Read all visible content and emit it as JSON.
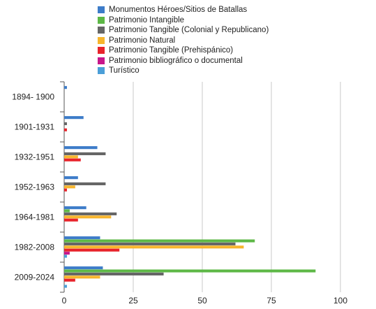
{
  "chart_data": {
    "type": "bar",
    "orientation": "horizontal",
    "title": "",
    "xlabel": "",
    "ylabel": "",
    "xlim": [
      0,
      100
    ],
    "x_ticks": [
      0,
      25,
      50,
      75,
      100
    ],
    "grid": true,
    "legend_position": "top",
    "categories": [
      "1894- 1900",
      "1901-1931",
      "1932-1951",
      "1952-1963",
      "1964-1981",
      "1982-2008",
      "2009-2024"
    ],
    "series": [
      {
        "name": "Monumentos Héroes/Sitios de Batallas",
        "color": "#3d7cc9",
        "values": [
          1,
          7,
          12,
          5,
          8,
          13,
          14
        ]
      },
      {
        "name": "Patrimonio Intangible",
        "color": "#5db846",
        "values": [
          0,
          0,
          0,
          0,
          2,
          69,
          91
        ]
      },
      {
        "name": "Patrimonio Tangible (Colonial y Republicano)",
        "color": "#666666",
        "values": [
          0,
          1,
          15,
          15,
          19,
          62,
          36
        ]
      },
      {
        "name": "Patrimonio Natural",
        "color": "#f7b52c",
        "values": [
          0,
          0,
          5,
          4,
          17,
          65,
          13
        ]
      },
      {
        "name": "Patrimonio Tangible (Prehispánico)",
        "color": "#e8232b",
        "values": [
          0,
          1,
          6,
          1,
          5,
          20,
          4
        ]
      },
      {
        "name": "Patrimonio bibliográfico o documental",
        "color": "#c8178a",
        "values": [
          0,
          0,
          0,
          0,
          0,
          2,
          0
        ]
      },
      {
        "name": "Turístico",
        "color": "#4b9fd8",
        "values": [
          0,
          0,
          0,
          0,
          0,
          1,
          1
        ]
      }
    ]
  }
}
